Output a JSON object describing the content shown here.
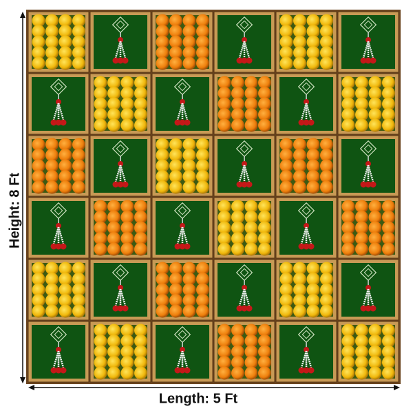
{
  "labels": {
    "height": "Height: 8 Ft",
    "length": "Length: 5 Ft"
  }
}
